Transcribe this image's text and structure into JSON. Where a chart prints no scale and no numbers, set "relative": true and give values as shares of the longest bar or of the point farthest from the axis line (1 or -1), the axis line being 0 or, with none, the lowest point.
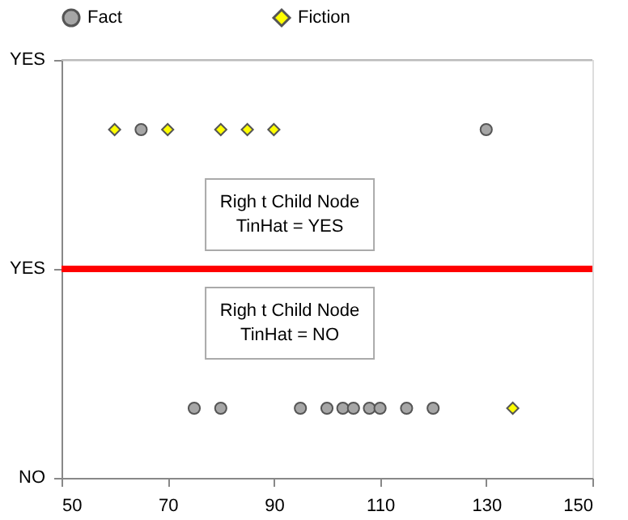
{
  "chart_data": {
    "type": "scatter",
    "relative": true,
    "xlim": [
      50,
      150
    ],
    "xticks": [
      50,
      70,
      90,
      110,
      130,
      150
    ],
    "grid": false,
    "legend": "top",
    "series": [
      {
        "name": "Fact",
        "color": "#a6a6a6",
        "marker": "circle",
        "x": [
          65,
          130,
          75,
          80,
          95,
          100,
          103,
          105,
          108,
          110,
          115,
          120
        ],
        "values": [
          1,
          1,
          0.2,
          0.2,
          0.2,
          0.2,
          0.2,
          0.2,
          0.2,
          0.2,
          0.2,
          0.2
        ]
      },
      {
        "name": "Fiction",
        "color": "#ffff00",
        "marker": "diamond",
        "x": [
          60,
          70,
          80,
          85,
          90,
          135
        ],
        "values": [
          1,
          1,
          1,
          1,
          1,
          0.2
        ]
      }
    ],
    "ref_lines": [
      {
        "axis": "y",
        "value": 0.6,
        "color": "#ff0000",
        "label": "YES"
      }
    ],
    "annotations": [
      "YES",
      "NO",
      "Righ t Child Node\nTinHat = YES",
      "Righ t Child Node\nTinHat = NO"
    ]
  }
}
